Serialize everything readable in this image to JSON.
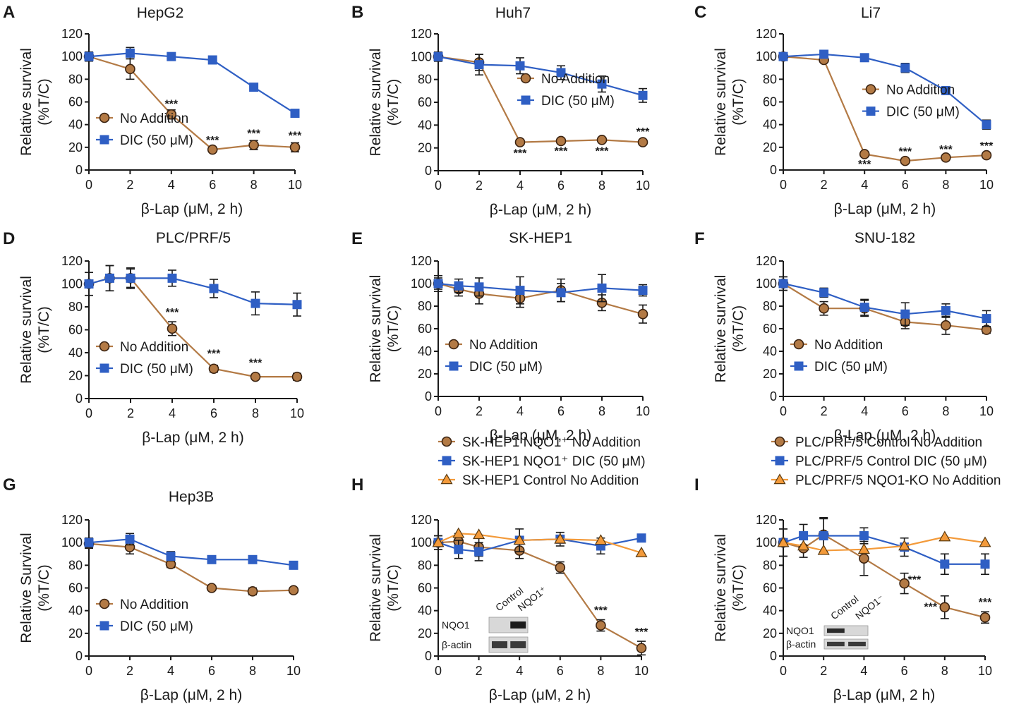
{
  "figure": {
    "x_axis_label": "β-Lap (μM, 2 h)"
  },
  "colors": {
    "no_addition": "#b37a45",
    "no_addition_stroke": "#3a2210",
    "dic": "#2f5fc4",
    "control": "#f39a3a",
    "axis": "#1a1a1a"
  },
  "chart_data": [
    {
      "id": "A",
      "letter": "A",
      "type": "line",
      "title": "HepG2",
      "ylabel1": "Relative survival",
      "ylabel2": "(%T/C)",
      "xlabel": "β-Lap (μM, 2 h)",
      "xlim": [
        0,
        10
      ],
      "ylim": [
        0,
        120
      ],
      "xticks": [
        0,
        2,
        4,
        6,
        8,
        10
      ],
      "xtick_labels": [
        "0",
        "2",
        "4",
        "6",
        "8",
        "10"
      ],
      "yticks": [
        0,
        20,
        40,
        60,
        80,
        100,
        120
      ],
      "ytick_labels": [
        "0",
        "20",
        "40",
        "60",
        "80",
        "100",
        "120"
      ],
      "legend_position": "bottom-left",
      "series": [
        {
          "name": "No Addition",
          "marker": "circle",
          "color": "#b37a45",
          "x": [
            0,
            2,
            4,
            6,
            8,
            10
          ],
          "y": [
            100,
            89,
            49,
            18,
            22,
            20
          ],
          "err": [
            4,
            9,
            4,
            2,
            4,
            4
          ]
        },
        {
          "name": "DIC (50 μM)",
          "marker": "square",
          "color": "#2f5fc4",
          "x": [
            0,
            2,
            4,
            6,
            8,
            10
          ],
          "y": [
            100,
            103,
            100,
            97,
            73,
            50
          ],
          "err": [
            4,
            5,
            2,
            2,
            2,
            2
          ]
        }
      ],
      "annotations": [
        {
          "text": "***",
          "x": 4,
          "y": 55
        },
        {
          "text": "***",
          "x": 6,
          "y": 23
        },
        {
          "text": "***",
          "x": 8,
          "y": 29
        },
        {
          "text": "***",
          "x": 10,
          "y": 27
        }
      ]
    },
    {
      "id": "B",
      "letter": "B",
      "type": "line",
      "title": "Huh7",
      "ylabel1": "Relative survival",
      "ylabel2": "(%T/C)",
      "xlabel": "β-Lap (μM, 2 h)",
      "xlim": [
        0,
        10
      ],
      "ylim": [
        0,
        120
      ],
      "xticks": [
        0,
        2,
        4,
        6,
        8,
        10
      ],
      "xtick_labels": [
        "0",
        "2",
        "4",
        "6",
        "8",
        "10"
      ],
      "yticks": [
        0,
        20,
        40,
        60,
        80,
        100,
        120
      ],
      "ytick_labels": [
        "0",
        "20",
        "40",
        "60",
        "80",
        "100",
        "120"
      ],
      "legend_position": "middle-right",
      "series": [
        {
          "name": "No Addition",
          "marker": "circle",
          "color": "#b37a45",
          "x": [
            0,
            2,
            4,
            6,
            8,
            10
          ],
          "y": [
            100,
            95,
            25,
            26,
            27,
            25
          ],
          "err": [
            4,
            7,
            2,
            2,
            2,
            2
          ]
        },
        {
          "name": "DIC (50 μM)",
          "marker": "square",
          "color": "#2f5fc4",
          "x": [
            0,
            2,
            4,
            6,
            8,
            10
          ],
          "y": [
            100,
            93,
            92,
            86,
            76,
            66
          ],
          "err": [
            4,
            9,
            7,
            6,
            7,
            6
          ]
        }
      ],
      "annotations": [
        {
          "text": "***",
          "x": 4,
          "y": 12
        },
        {
          "text": "***",
          "x": 6,
          "y": 14
        },
        {
          "text": "***",
          "x": 8,
          "y": 14
        },
        {
          "text": "***",
          "x": 10,
          "y": 31
        }
      ]
    },
    {
      "id": "C",
      "letter": "C",
      "type": "line",
      "title": "Li7",
      "ylabel1": "Relative survival",
      "ylabel2": "(%T/C)",
      "xlabel": "β-Lap (μM, 2 h)",
      "xlim": [
        0,
        10
      ],
      "ylim": [
        0,
        120
      ],
      "xticks": [
        0,
        2,
        4,
        6,
        8,
        10
      ],
      "xtick_labels": [
        "0",
        "2",
        "4",
        "6",
        "8",
        "10"
      ],
      "yticks": [
        0,
        20,
        40,
        60,
        80,
        100,
        120
      ],
      "ytick_labels": [
        "0",
        "20",
        "40",
        "60",
        "80",
        "100",
        "120"
      ],
      "legend_position": "middle-right",
      "series": [
        {
          "name": "No Addition",
          "marker": "circle",
          "color": "#b37a45",
          "x": [
            0,
            2,
            4,
            6,
            8,
            10
          ],
          "y": [
            100,
            97,
            14,
            8,
            11,
            13
          ],
          "err": [
            2,
            2,
            2,
            1,
            1,
            1
          ]
        },
        {
          "name": "DIC (50 μM)",
          "marker": "square",
          "color": "#2f5fc4",
          "x": [
            0,
            2,
            4,
            6,
            8,
            10
          ],
          "y": [
            100,
            102,
            99,
            90,
            70,
            40
          ],
          "err": [
            2,
            2,
            2,
            4,
            2,
            4
          ]
        }
      ],
      "annotations": [
        {
          "text": "***",
          "x": 4,
          "y": 2
        },
        {
          "text": "***",
          "x": 6,
          "y": 13
        },
        {
          "text": "***",
          "x": 8,
          "y": 15
        },
        {
          "text": "***",
          "x": 10,
          "y": 18
        }
      ]
    },
    {
      "id": "D",
      "letter": "D",
      "type": "line",
      "title": "PLC/PRF/5",
      "ylabel1": "Relative survival",
      "ylabel2": "(%T/C)",
      "xlabel": "β-Lap (μM, 2 h)",
      "xlim": [
        0,
        10
      ],
      "ylim": [
        0,
        120
      ],
      "xticks": [
        0,
        2,
        4,
        6,
        8,
        10
      ],
      "xtick_labels": [
        "0",
        "2",
        "4",
        "6",
        "8",
        "10"
      ],
      "yticks": [
        0,
        20,
        40,
        60,
        80,
        100,
        120
      ],
      "ytick_labels": [
        "0",
        "20",
        "40",
        "60",
        "80",
        "100",
        "120"
      ],
      "legend_position": "bottom-left",
      "series": [
        {
          "name": "No Addition",
          "marker": "circle",
          "color": "#b37a45",
          "x": [
            0,
            1,
            2,
            4,
            6,
            8,
            10
          ],
          "y": [
            100,
            105,
            105,
            61,
            26,
            19,
            19
          ],
          "err": [
            10,
            11,
            8,
            6,
            3,
            2,
            3
          ]
        },
        {
          "name": "DIC (50 μM)",
          "marker": "square",
          "color": "#2f5fc4",
          "x": [
            0,
            1,
            2,
            4,
            6,
            8,
            10
          ],
          "y": [
            100,
            105,
            105,
            105,
            96,
            83,
            82
          ],
          "err": [
            10,
            11,
            9,
            7,
            8,
            10,
            10
          ]
        }
      ],
      "annotations": [
        {
          "text": "***",
          "x": 4,
          "y": 72
        },
        {
          "text": "***",
          "x": 6,
          "y": 36
        },
        {
          "text": "***",
          "x": 8,
          "y": 28
        }
      ]
    },
    {
      "id": "E",
      "letter": "E",
      "type": "line",
      "title": "SK-HEP1",
      "ylabel1": "Relative survival",
      "ylabel2": "(%T/C)",
      "xlabel": "β-Lap (μM, 2 h)",
      "xlim": [
        0,
        10
      ],
      "ylim": [
        0,
        120
      ],
      "xticks": [
        0,
        2,
        4,
        6,
        8,
        10
      ],
      "xtick_labels": [
        "0",
        "2",
        "4",
        "6",
        "8",
        "10"
      ],
      "yticks": [
        0,
        20,
        40,
        60,
        80,
        100,
        120
      ],
      "ytick_labels": [
        "0",
        "20",
        "40",
        "60",
        "80",
        "100",
        "120"
      ],
      "legend_position": "bottom-left",
      "series": [
        {
          "name": "No Addition",
          "marker": "circle",
          "color": "#b37a45",
          "x": [
            0,
            1,
            2,
            4,
            6,
            8,
            10
          ],
          "y": [
            100,
            95,
            91,
            87,
            94,
            83,
            73
          ],
          "err": [
            5,
            6,
            9,
            8,
            10,
            7,
            8
          ]
        },
        {
          "name": "DIC (50 μM)",
          "marker": "square",
          "color": "#2f5fc4",
          "x": [
            0,
            1,
            2,
            4,
            6,
            8,
            10
          ],
          "y": [
            100,
            98,
            97,
            94,
            92,
            96,
            94
          ],
          "err": [
            7,
            6,
            8,
            12,
            8,
            12,
            5
          ]
        }
      ],
      "annotations": []
    },
    {
      "id": "F",
      "letter": "F",
      "type": "line",
      "title": "SNU-182",
      "ylabel1": "Relative survival",
      "ylabel2": "(%T/C)",
      "xlabel": "β-Lap (μM, 2 h)",
      "xlim": [
        0,
        10
      ],
      "ylim": [
        0,
        120
      ],
      "xticks": [
        0,
        2,
        4,
        6,
        8,
        10
      ],
      "xtick_labels": [
        "0",
        "2",
        "4",
        "6",
        "8",
        "10"
      ],
      "yticks": [
        0,
        20,
        40,
        60,
        80,
        100,
        120
      ],
      "ytick_labels": [
        "0",
        "20",
        "40",
        "60",
        "80",
        "100",
        "120"
      ],
      "legend_position": "bottom-left",
      "series": [
        {
          "name": "No Addition",
          "marker": "circle",
          "color": "#b37a45",
          "x": [
            0,
            2,
            4,
            6,
            8,
            10
          ],
          "y": [
            100,
            78,
            78,
            66,
            63,
            59
          ],
          "err": [
            6,
            6,
            7,
            6,
            8,
            3
          ]
        },
        {
          "name": "DIC (50 μM)",
          "marker": "square",
          "color": "#2f5fc4",
          "x": [
            0,
            2,
            4,
            6,
            8,
            10
          ],
          "y": [
            100,
            92,
            79,
            73,
            76,
            69
          ],
          "err": [
            6,
            4,
            7,
            10,
            6,
            7
          ]
        }
      ],
      "annotations": []
    },
    {
      "id": "G",
      "letter": "G",
      "type": "line",
      "title": "Hep3B",
      "ylabel1": "Relative Survival",
      "ylabel2": "(%T/C)",
      "xlabel": "β-Lap (μM, 2 h)",
      "xlim": [
        0,
        10
      ],
      "ylim": [
        0,
        120
      ],
      "xticks": [
        0,
        2,
        4,
        6,
        8,
        10
      ],
      "xtick_labels": [
        "0",
        "2",
        "4",
        "6",
        "8",
        "10"
      ],
      "yticks": [
        0,
        20,
        40,
        60,
        80,
        100,
        120
      ],
      "ytick_labels": [
        "0",
        "20",
        "40",
        "60",
        "80",
        "100",
        "120"
      ],
      "legend_position": "bottom-left",
      "series": [
        {
          "name": "No Addition",
          "marker": "circle",
          "color": "#b37a45",
          "x": [
            0,
            2,
            4,
            6,
            8,
            10
          ],
          "y": [
            99,
            96,
            81,
            60,
            57,
            58
          ],
          "err": [
            4,
            6,
            3,
            2,
            3,
            2
          ]
        },
        {
          "name": "DIC (50 μM)",
          "marker": "square",
          "color": "#2f5fc4",
          "x": [
            0,
            2,
            4,
            6,
            8,
            10
          ],
          "y": [
            100,
            103,
            88,
            85,
            85,
            80
          ],
          "err": [
            4,
            5,
            4,
            2,
            2,
            3
          ]
        }
      ],
      "annotations": []
    },
    {
      "id": "H",
      "letter": "H",
      "type": "line",
      "title": "",
      "ylabel1": "Relative survival",
      "ylabel2": "(%T/C)",
      "xlabel": "β-Lap (μM, 2 h)",
      "xlim": [
        0,
        10
      ],
      "ylim": [
        0,
        120
      ],
      "xticks": [
        0,
        2,
        4,
        6,
        8,
        10
      ],
      "xtick_labels": [
        "0",
        "2",
        "4",
        "6",
        "8",
        "10"
      ],
      "yticks": [
        0,
        20,
        40,
        60,
        80,
        100,
        120
      ],
      "ytick_labels": [
        "0",
        "20",
        "40",
        "60",
        "80",
        "100",
        "120"
      ],
      "legend_position": "top",
      "series": [
        {
          "name": "SK-HEP1 NQO1⁺ No Addition",
          "marker": "circle",
          "color": "#b37a45",
          "x": [
            0,
            1,
            2,
            4,
            6,
            8,
            10
          ],
          "y": [
            100,
            101,
            96,
            93,
            78,
            27,
            7
          ],
          "err": [
            6,
            7,
            8,
            7,
            5,
            5,
            6
          ]
        },
        {
          "name": "SK-HEP1 NQO1⁺ DIC (50 μM)",
          "marker": "square",
          "color": "#2f5fc4",
          "x": [
            0,
            1,
            2,
            4,
            6,
            8,
            10
          ],
          "y": [
            100,
            94,
            92,
            102,
            103,
            97,
            104
          ],
          "err": [
            6,
            8,
            8,
            10,
            6,
            7,
            3
          ]
        },
        {
          "name": "SK-HEP1 Control No Addition",
          "marker": "triangle",
          "color": "#f39a3a",
          "x": [
            0,
            1,
            2,
            4,
            6,
            8,
            10
          ],
          "y": [
            100,
            108,
            107,
            102,
            103,
            102,
            91
          ],
          "err": [
            0,
            0,
            0,
            0,
            0,
            0,
            0
          ]
        }
      ],
      "annotations": [
        {
          "text": "***",
          "x": 8,
          "y": 37
        },
        {
          "text": "***",
          "x": 10,
          "y": 18
        }
      ],
      "blot": {
        "columns": [
          "Control",
          "NQO1⁺"
        ],
        "rows": [
          "NQO1",
          "β-actin"
        ]
      }
    },
    {
      "id": "I",
      "letter": "I",
      "type": "line",
      "title": "",
      "ylabel1": "Relative survival",
      "ylabel2": "(%T/C)",
      "xlabel": "β-Lap (μM, 2 h)",
      "xlim": [
        0,
        10
      ],
      "ylim": [
        0,
        120
      ],
      "xticks": [
        0,
        2,
        4,
        6,
        8,
        10
      ],
      "xtick_labels": [
        "0",
        "2",
        "4",
        "6",
        "8",
        "10"
      ],
      "yticks": [
        0,
        20,
        40,
        60,
        80,
        100,
        120
      ],
      "ytick_labels": [
        "0",
        "20",
        "40",
        "60",
        "80",
        "100",
        "120"
      ],
      "legend_position": "top",
      "series": [
        {
          "name": "PLC/PRF/5 Control No Addition",
          "marker": "circle",
          "color": "#b37a45",
          "x": [
            0,
            1,
            2,
            4,
            6,
            8,
            10
          ],
          "y": [
            100,
            95,
            107,
            86,
            64,
            43,
            34
          ],
          "err": [
            12,
            8,
            15,
            15,
            9,
            10,
            5
          ]
        },
        {
          "name": "PLC/PRF/5 Control DIC (50 μM)",
          "marker": "square",
          "color": "#2f5fc4",
          "x": [
            0,
            1,
            2,
            4,
            6,
            8,
            10
          ],
          "y": [
            100,
            106,
            106,
            106,
            96,
            81,
            81
          ],
          "err": [
            12,
            10,
            15,
            7,
            8,
            9,
            9
          ]
        },
        {
          "name": "PLC/PRF/5 NQO1-KO No Addition",
          "marker": "triangle",
          "color": "#f39a3a",
          "x": [
            0,
            1,
            2,
            4,
            6,
            8,
            10
          ],
          "y": [
            100,
            97,
            93,
            94,
            97,
            105,
            100
          ],
          "err": [
            0,
            0,
            0,
            0,
            0,
            0,
            0
          ]
        }
      ],
      "annotations": [
        {
          "text": "***",
          "x": 6.5,
          "y": 64
        },
        {
          "text": "***",
          "x": 7.3,
          "y": 40
        },
        {
          "text": "***",
          "x": 10,
          "y": 44
        }
      ],
      "blot": {
        "columns": [
          "Control",
          "NQO1⁻"
        ],
        "rows": [
          "NQO1",
          "β-actin"
        ]
      }
    }
  ]
}
